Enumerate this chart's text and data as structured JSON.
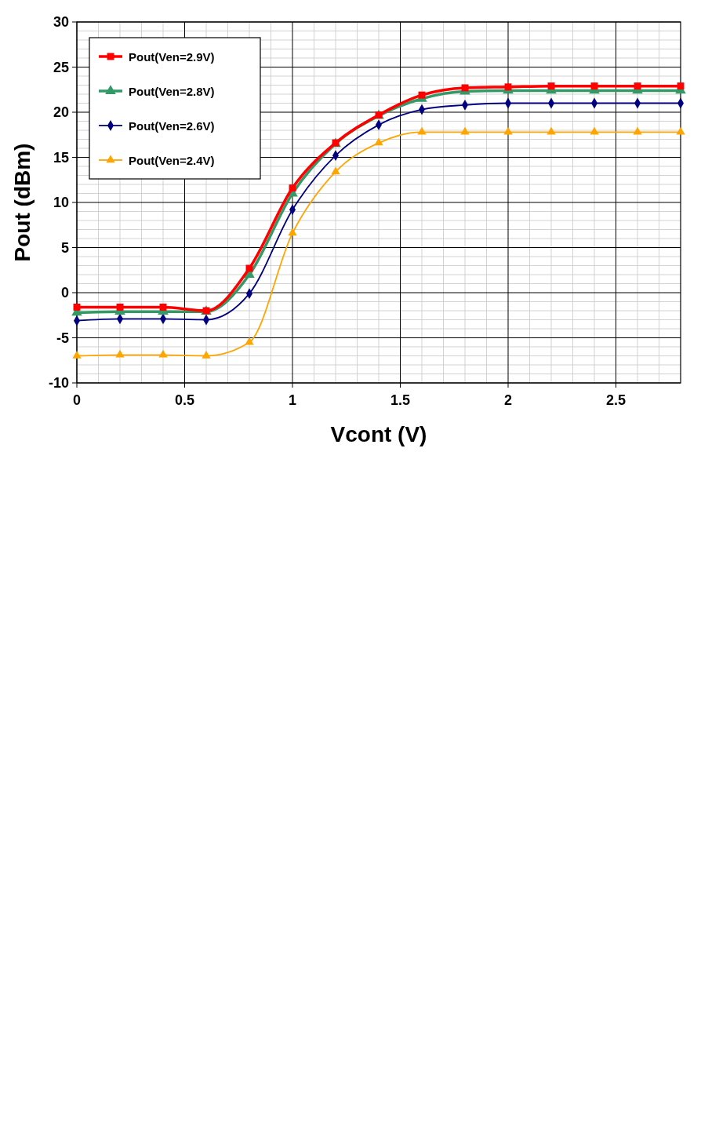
{
  "chart_data": {
    "type": "line",
    "xlabel": "Vcont (V)",
    "ylabel": "Pout (dBm)",
    "x": [
      0,
      0.2,
      0.4,
      0.6,
      0.8,
      1.0,
      1.2,
      1.4,
      1.6,
      1.8,
      2.0,
      2.2,
      2.4,
      2.6,
      2.8
    ],
    "xlim": [
      0,
      2.8
    ],
    "xticks": [
      0,
      0.5,
      1,
      1.5,
      2,
      2.5
    ],
    "ylim": [
      -10,
      30
    ],
    "yticks": [
      -10,
      -5,
      0,
      5,
      10,
      15,
      20,
      25,
      30
    ],
    "grid": true,
    "legend": "top left",
    "line_style": "solid",
    "series": [
      {
        "name": "Pout(Ven=2.9V)",
        "color": "#ff0000",
        "marker": "square",
        "values": [
          -1.6,
          -1.6,
          -1.6,
          -2.0,
          2.7,
          11.6,
          16.6,
          19.7,
          21.9,
          22.7,
          22.8,
          22.9,
          22.9,
          22.9,
          22.9
        ]
      },
      {
        "name": "Pout(Ven=2.8V)",
        "color": "#339966",
        "marker": "triangle",
        "values": [
          -2.2,
          -2.1,
          -2.1,
          -2.1,
          2.0,
          11.0,
          16.5,
          19.6,
          21.5,
          22.3,
          22.4,
          22.4,
          22.4,
          22.4,
          22.4
        ]
      },
      {
        "name": "Pout(Ven=2.6V)",
        "color": "#000080",
        "marker": "diamond",
        "values": [
          -3.1,
          -2.9,
          -2.9,
          -3.0,
          -0.1,
          9.2,
          15.2,
          18.6,
          20.3,
          20.8,
          21.0,
          21.0,
          21.0,
          21.0,
          21.0
        ]
      },
      {
        "name": "Pout(Ven=2.4V)",
        "color": "#ffa500",
        "marker": "triangle",
        "values": [
          -7.0,
          -6.9,
          -6.9,
          -7.0,
          -5.5,
          6.6,
          13.4,
          16.6,
          17.8,
          17.8,
          17.8,
          17.8,
          17.8,
          17.8,
          17.8
        ]
      }
    ]
  }
}
